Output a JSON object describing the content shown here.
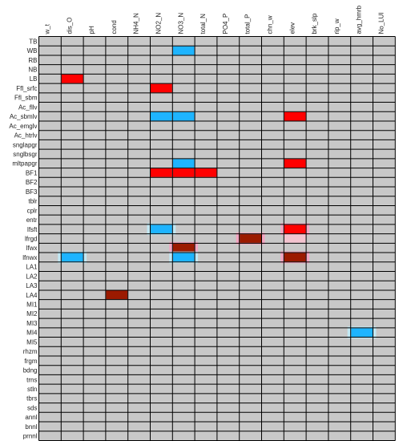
{
  "chart_data": {
    "type": "heatmap",
    "columns": [
      "w_t",
      "dis_O",
      "pH",
      "cond",
      "NH4_N",
      "NO2_N",
      "NO3_N",
      "total_N",
      "PO4_P",
      "total_P",
      "chn_w",
      "elev",
      "brk_slp",
      "rip_w",
      "avg_hmrb",
      "No_LUI"
    ],
    "rows": [
      "TB",
      "WB",
      "RB",
      "NB",
      "LB",
      "Ffl_srfc",
      "Ffl_sbm",
      "Ac_fllv",
      "Ac_sbmlv",
      "Ac_emglv",
      "Ac_htrlv",
      "snglapgr",
      "snglbsgr",
      "mltpapgr",
      "BF1",
      "BF2",
      "BF3",
      "tblr",
      "cplr",
      "entr",
      "lfsft",
      "lfrgd",
      "lfwx",
      "lfnwx",
      "LA1",
      "LA2",
      "LA3",
      "LA4",
      "MI1",
      "MI2",
      "MI3",
      "MI4",
      "MI5",
      "rhzm",
      "frgm",
      "bdng",
      "trns",
      "stln",
      "tbrs",
      "sds",
      "annl",
      "bnnl",
      "prnnl"
    ],
    "legend": {
      "colors": {
        "background": "#c8c8c8",
        "red": "#ff0000",
        "blue": "#1eb4ff",
        "darkred": "#9b1a00",
        "grid": "#000000"
      }
    },
    "cells": [
      {
        "row": "WB",
        "col": "NO3_N",
        "color": "blue"
      },
      {
        "row": "LB",
        "col": "dis_O",
        "color": "red"
      },
      {
        "row": "Ffl_srfc",
        "col": "NO2_N",
        "color": "red"
      },
      {
        "row": "Ac_sbmlv",
        "col": "NO2_N",
        "color": "blue"
      },
      {
        "row": "Ac_sbmlv",
        "col": "NO3_N",
        "color": "blue"
      },
      {
        "row": "Ac_sbmlv",
        "col": "elev",
        "color": "red"
      },
      {
        "row": "mltpapgr",
        "col": "NO3_N",
        "color": "blue"
      },
      {
        "row": "mltpapgr",
        "col": "elev",
        "color": "red"
      },
      {
        "row": "BF1",
        "col": "NO2_N",
        "color": "red"
      },
      {
        "row": "BF1",
        "col": "NO3_N",
        "color": "red"
      },
      {
        "row": "BF1",
        "col": "total_N",
        "color": "red"
      },
      {
        "row": "lfsft",
        "col": "NO2_N",
        "color": "blue",
        "glow": true
      },
      {
        "row": "lfsft",
        "col": "elev",
        "color": "red",
        "glow": true
      },
      {
        "row": "lfrgd",
        "col": "total_P",
        "color": "darkred",
        "glow": true
      },
      {
        "row": "lfrgd",
        "col": "elev",
        "color": "pale"
      },
      {
        "row": "lfwx",
        "col": "NO3_N",
        "color": "darkred",
        "glow": true
      },
      {
        "row": "lfnwx",
        "col": "dis_O",
        "color": "blue",
        "glow": true
      },
      {
        "row": "lfnwx",
        "col": "NO3_N",
        "color": "blue",
        "glow": true
      },
      {
        "row": "lfnwx",
        "col": "elev",
        "color": "darkred",
        "glow": true
      },
      {
        "row": "LA4",
        "col": "cond",
        "color": "darkred"
      },
      {
        "row": "MI4",
        "col": "avg_hmrb",
        "color": "blue",
        "glow": true
      }
    ]
  }
}
